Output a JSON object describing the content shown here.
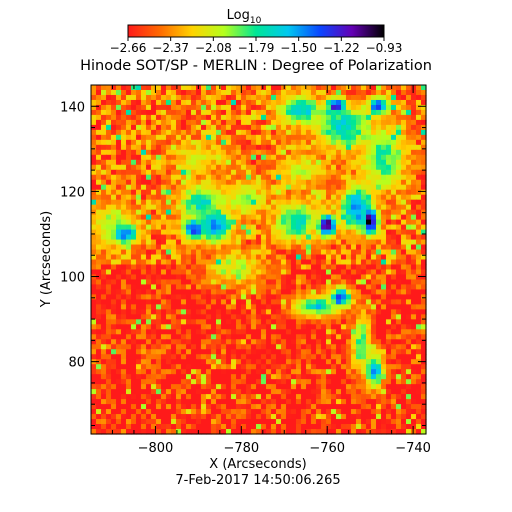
{
  "chart_data": {
    "type": "heatmap",
    "title": "Hinode SOT/SP - MERLIN : Degree of Polarization",
    "xlabel": "X (Arcseconds)",
    "ylabel": "Y (Arcseconds)",
    "timestamp": "7-Feb-2017 14:50:06.265",
    "xlim": [
      -815,
      -737
    ],
    "ylim": [
      63,
      145
    ],
    "x_ticks": [
      -800,
      -780,
      -760,
      -740
    ],
    "y_ticks": [
      80,
      100,
      120,
      140
    ],
    "x_tick_labels": [
      "−800",
      "−780",
      "−760",
      "−740"
    ],
    "y_tick_labels": [
      "80",
      "100",
      "120",
      "140"
    ],
    "colorbar": {
      "label_base": "Log",
      "label_sub": "10",
      "range": [
        -2.66,
        -0.93
      ],
      "tick_labels": [
        "−2.66",
        "−2.37",
        "−2.08",
        "−1.79",
        "−1.50",
        "−1.22",
        "−0.93"
      ],
      "colormap": [
        "#ff1a1a",
        "#ff6a00",
        "#ffd200",
        "#b4ff1e",
        "#00e696",
        "#00c8f0",
        "#0a46ff",
        "#6400b4",
        "#000000"
      ]
    },
    "features": [
      {
        "x": -807,
        "y": 110,
        "sx": 2.4,
        "sy": 2.0,
        "value": -1.4
      },
      {
        "x": -789,
        "y": 117,
        "sx": 4.5,
        "sy": 4.0,
        "value": -1.75
      },
      {
        "x": -786,
        "y": 112,
        "sx": 3.0,
        "sy": 3.0,
        "value": -1.4
      },
      {
        "x": -791,
        "y": 111,
        "sx": 2.2,
        "sy": 2.0,
        "value": -1.3
      },
      {
        "x": -767,
        "y": 113,
        "sx": 4.0,
        "sy": 3.5,
        "value": -1.7
      },
      {
        "x": -760,
        "y": 112,
        "sx": 1.6,
        "sy": 2.0,
        "value": -1.0
      },
      {
        "x": -750,
        "y": 113,
        "sx": 1.5,
        "sy": 2.4,
        "value": -0.95
      },
      {
        "x": -753,
        "y": 116,
        "sx": 3.0,
        "sy": 4.0,
        "value": -1.45
      },
      {
        "x": -747,
        "y": 128,
        "sx": 4.0,
        "sy": 6.0,
        "value": -1.8
      },
      {
        "x": -756,
        "y": 135,
        "sx": 5.0,
        "sy": 4.0,
        "value": -1.65
      },
      {
        "x": -766,
        "y": 139,
        "sx": 4.0,
        "sy": 2.5,
        "value": -1.6
      },
      {
        "x": -758,
        "y": 140,
        "sx": 1.8,
        "sy": 1.5,
        "value": -1.25
      },
      {
        "x": -748,
        "y": 140,
        "sx": 1.8,
        "sy": 1.5,
        "value": -1.25
      },
      {
        "x": -762,
        "y": 93,
        "sx": 4.0,
        "sy": 1.8,
        "value": -1.65
      },
      {
        "x": -757,
        "y": 95,
        "sx": 2.0,
        "sy": 2.0,
        "value": -1.4
      },
      {
        "x": -752,
        "y": 84,
        "sx": 1.5,
        "sy": 5.0,
        "value": -1.8
      },
      {
        "x": -749,
        "y": 78,
        "sx": 1.5,
        "sy": 3.0,
        "value": -1.5
      },
      {
        "x": -810,
        "y": 112,
        "sx": 4.0,
        "sy": 4.0,
        "value": -1.95
      },
      {
        "x": -779,
        "y": 118,
        "sx": 4.0,
        "sy": 3.0,
        "value": -1.95
      },
      {
        "x": -781,
        "y": 102,
        "sx": 5.0,
        "sy": 3.0,
        "value": -2.05
      },
      {
        "x": -790,
        "y": 128,
        "sx": 5.0,
        "sy": 3.0,
        "value": -2.1
      },
      {
        "x": -766,
        "y": 125,
        "sx": 4.0,
        "sy": 3.0,
        "value": -2.05
      }
    ]
  }
}
